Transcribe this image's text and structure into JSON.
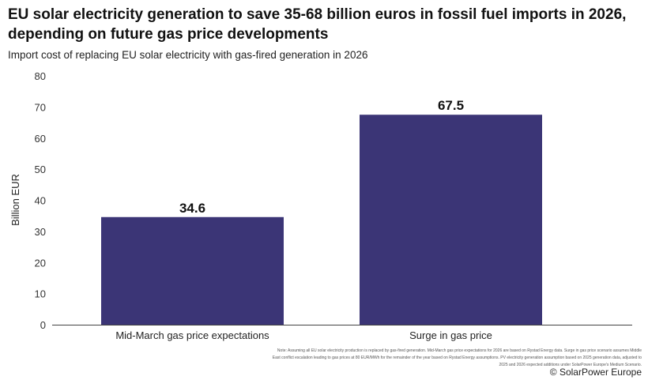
{
  "chart_data": {
    "type": "bar",
    "title": "EU solar electricity generation to save 35-68 billion euros in fossil fuel imports in 2026, depending on future gas price developments",
    "subtitle": "Import cost of replacing EU solar electricity with gas-fired generation in 2026",
    "categories": [
      "Mid-March gas price expectations",
      "Surge in gas price"
    ],
    "values": [
      34.6,
      67.5
    ],
    "data_labels": [
      "34.6",
      "67.5"
    ],
    "xlabel": "",
    "ylabel": "Billion EUR",
    "ylim": [
      0,
      80
    ],
    "yticks": [
      0,
      10,
      20,
      30,
      40,
      50,
      60,
      70,
      80
    ],
    "grid": false,
    "legend": "none",
    "bar_color": "#3b3576"
  },
  "footer": {
    "note": "Note: Assuming all EU solar electricity production is replaced by gas-fired generation. Mid-March gas price expectations for 2026 are based on Rystad Energy data. Surge in gas price scenario assumes Middle East conflict escalation leading to gas prices at 80 EUR/MWh for the remainder of the year based on Rystad Energy assumptions. PV electricity generation assumption based on 2025 generation data, adjusted to 2025 and 2026 expected additions under SolarPower Europe's Medium Scenario.",
    "copyright": "© SolarPower Europe"
  }
}
